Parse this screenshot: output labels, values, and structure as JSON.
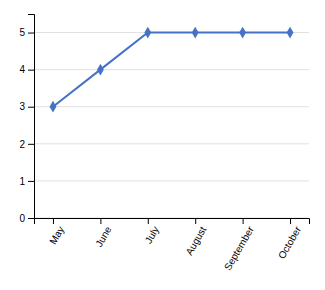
{
  "chart_data": {
    "type": "line",
    "categories": [
      "May",
      "June",
      "July",
      "August",
      "September",
      "October"
    ],
    "values": [
      3,
      4,
      5,
      5,
      5,
      5
    ],
    "color": "#4472c4",
    "marker": "diamond",
    "ylim": [
      0,
      5.5
    ],
    "yticks": [
      0,
      1,
      2,
      3,
      4,
      5
    ],
    "grid": true
  }
}
